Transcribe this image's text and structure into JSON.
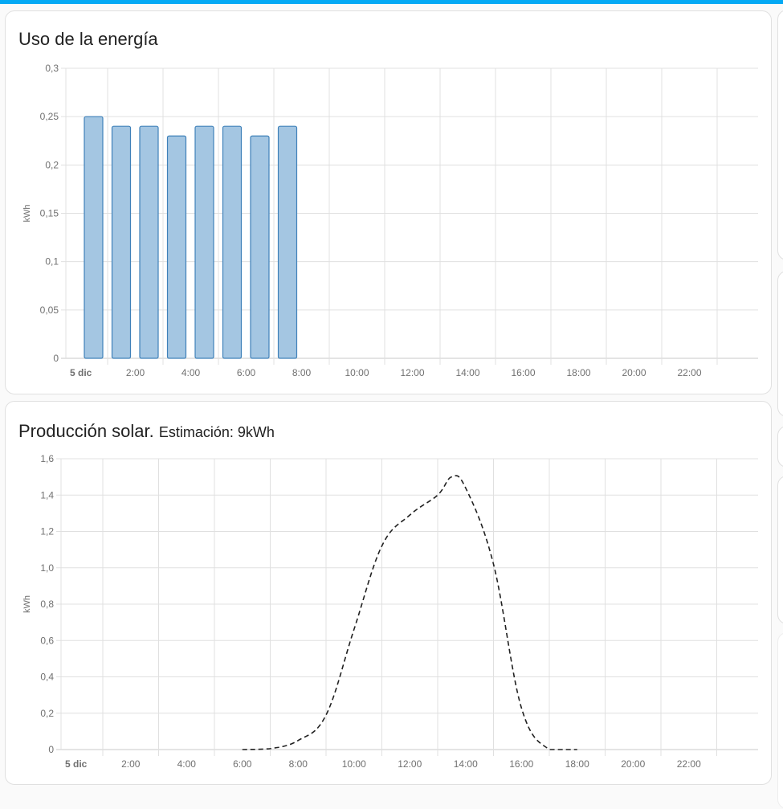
{
  "theme": {
    "accent": "#03a9f4",
    "bar_fill": "#a4c6e2",
    "bar_border": "#3f81b9",
    "line_color": "#212121",
    "grid_color": "#e0e0e0",
    "axis_text": "#707070"
  },
  "cards": {
    "energy": {
      "title": "Uso de la energía"
    },
    "solar": {
      "title": "Producción solar.",
      "subtitle": "Estimación: 9kWh"
    }
  },
  "chart_data": [
    {
      "type": "bar",
      "title": "Uso de la energía",
      "xlabel": "",
      "ylabel": "kWh",
      "ylim": [
        0,
        0.3
      ],
      "yticks": [
        "0",
        "0,05",
        "0,1",
        "0,15",
        "0,2",
        "0,25",
        "0,3"
      ],
      "xticks": [
        "5 dic",
        "2:00",
        "4:00",
        "6:00",
        "8:00",
        "10:00",
        "12:00",
        "14:00",
        "16:00",
        "18:00",
        "20:00",
        "22:00"
      ],
      "grid": true,
      "categories": [
        "0:00",
        "1:00",
        "2:00",
        "3:00",
        "4:00",
        "5:00",
        "6:00",
        "7:00"
      ],
      "values": [
        0.25,
        0.24,
        0.24,
        0.23,
        0.24,
        0.24,
        0.23,
        0.24
      ]
    },
    {
      "type": "line",
      "title": "Producción solar. Estimación: 9kWh",
      "xlabel": "",
      "ylabel": "kWh",
      "ylim": [
        0,
        1.6
      ],
      "yticks": [
        "0",
        "0,2",
        "0,4",
        "0,6",
        "0,8",
        "1,0",
        "1,2",
        "1,4",
        "1,6"
      ],
      "xticks": [
        "5 dic",
        "2:00",
        "4:00",
        "6:00",
        "8:00",
        "10:00",
        "12:00",
        "14:00",
        "16:00",
        "18:00",
        "20:00",
        "22:00"
      ],
      "grid": true,
      "line_style": "dashed",
      "x": [
        6,
        7,
        8,
        9,
        10,
        11,
        12,
        13,
        13.5,
        14,
        15,
        16,
        17,
        18
      ],
      "values": [
        0,
        0.005,
        0.05,
        0.19,
        0.66,
        1.12,
        1.29,
        1.4,
        1.5,
        1.44,
        1.02,
        0.23,
        0.0,
        0.0
      ]
    }
  ]
}
